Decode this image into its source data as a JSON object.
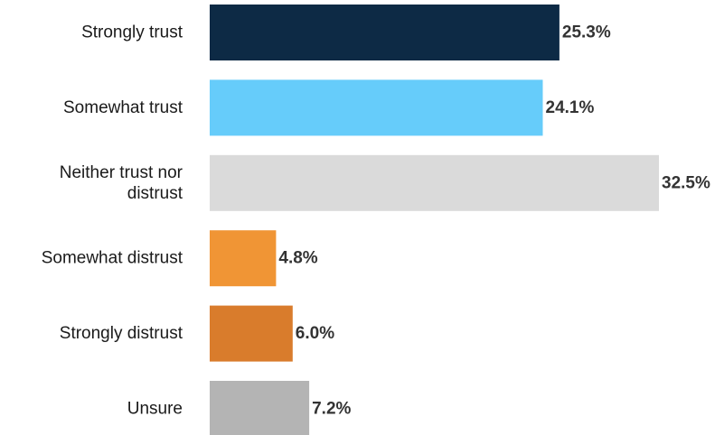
{
  "chart_data": {
    "type": "bar",
    "orientation": "horizontal",
    "categories": [
      [
        "Strongly trust"
      ],
      [
        "Somewhat trust"
      ],
      [
        "Neither trust nor",
        "distrust"
      ],
      [
        "Somewhat distrust"
      ],
      [
        "Strongly distrust"
      ],
      [
        "Unsure"
      ]
    ],
    "values": [
      25.3,
      24.1,
      32.5,
      4.8,
      6.0,
      7.2
    ],
    "value_labels": [
      "25.3%",
      "24.1%",
      "32.5%",
      "4.8%",
      "6.0%",
      "7.2%"
    ],
    "colors": [
      "#0d2a45",
      "#66ccfa",
      "#dadada",
      "#f09535",
      "#d97c2c",
      "#b4b4b4"
    ],
    "title": "",
    "xlabel": "",
    "ylabel": "",
    "xlim": [
      0,
      32.5
    ],
    "grid": false,
    "legend": "none"
  }
}
